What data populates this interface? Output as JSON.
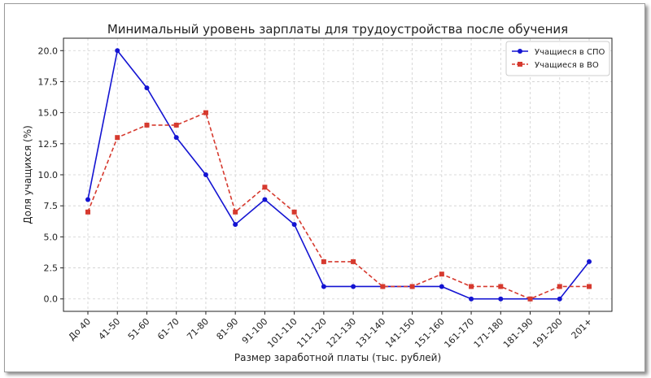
{
  "chart_data": {
    "type": "line",
    "title": "Минимальный уровень зарплаты для трудоустройства после обучения",
    "xlabel": "Размер заработной платы (тыс. рублей)",
    "ylabel": "Доля учащихся (%)",
    "categories": [
      "До 40",
      "41-50",
      "51-60",
      "61-70",
      "71-80",
      "81-90",
      "91-100",
      "101-110",
      "111-120",
      "121-130",
      "131-140",
      "141-150",
      "151-160",
      "161-170",
      "171-180",
      "181-190",
      "191-200",
      "201+"
    ],
    "ylim": [
      -1,
      21
    ],
    "yticks": [
      "0.0",
      "2.5",
      "5.0",
      "7.5",
      "10.0",
      "12.5",
      "15.0",
      "17.5",
      "20.0"
    ],
    "grid": true,
    "legend_position": "top-right",
    "series": [
      {
        "name": "Учащиеся в СПО",
        "color": "#1414d2",
        "style": "solid",
        "marker": "circle",
        "values": [
          8,
          20,
          17,
          13,
          10,
          6,
          8,
          6,
          1,
          1,
          1,
          1,
          1,
          0,
          0,
          0,
          0,
          3
        ]
      },
      {
        "name": "Учащиеся в ВО",
        "color": "#d63a2f",
        "style": "dashed",
        "marker": "square",
        "values": [
          7,
          13,
          14,
          14,
          15,
          7,
          9,
          7,
          3,
          3,
          1,
          1,
          2,
          1,
          1,
          0,
          1,
          1
        ]
      }
    ]
  }
}
